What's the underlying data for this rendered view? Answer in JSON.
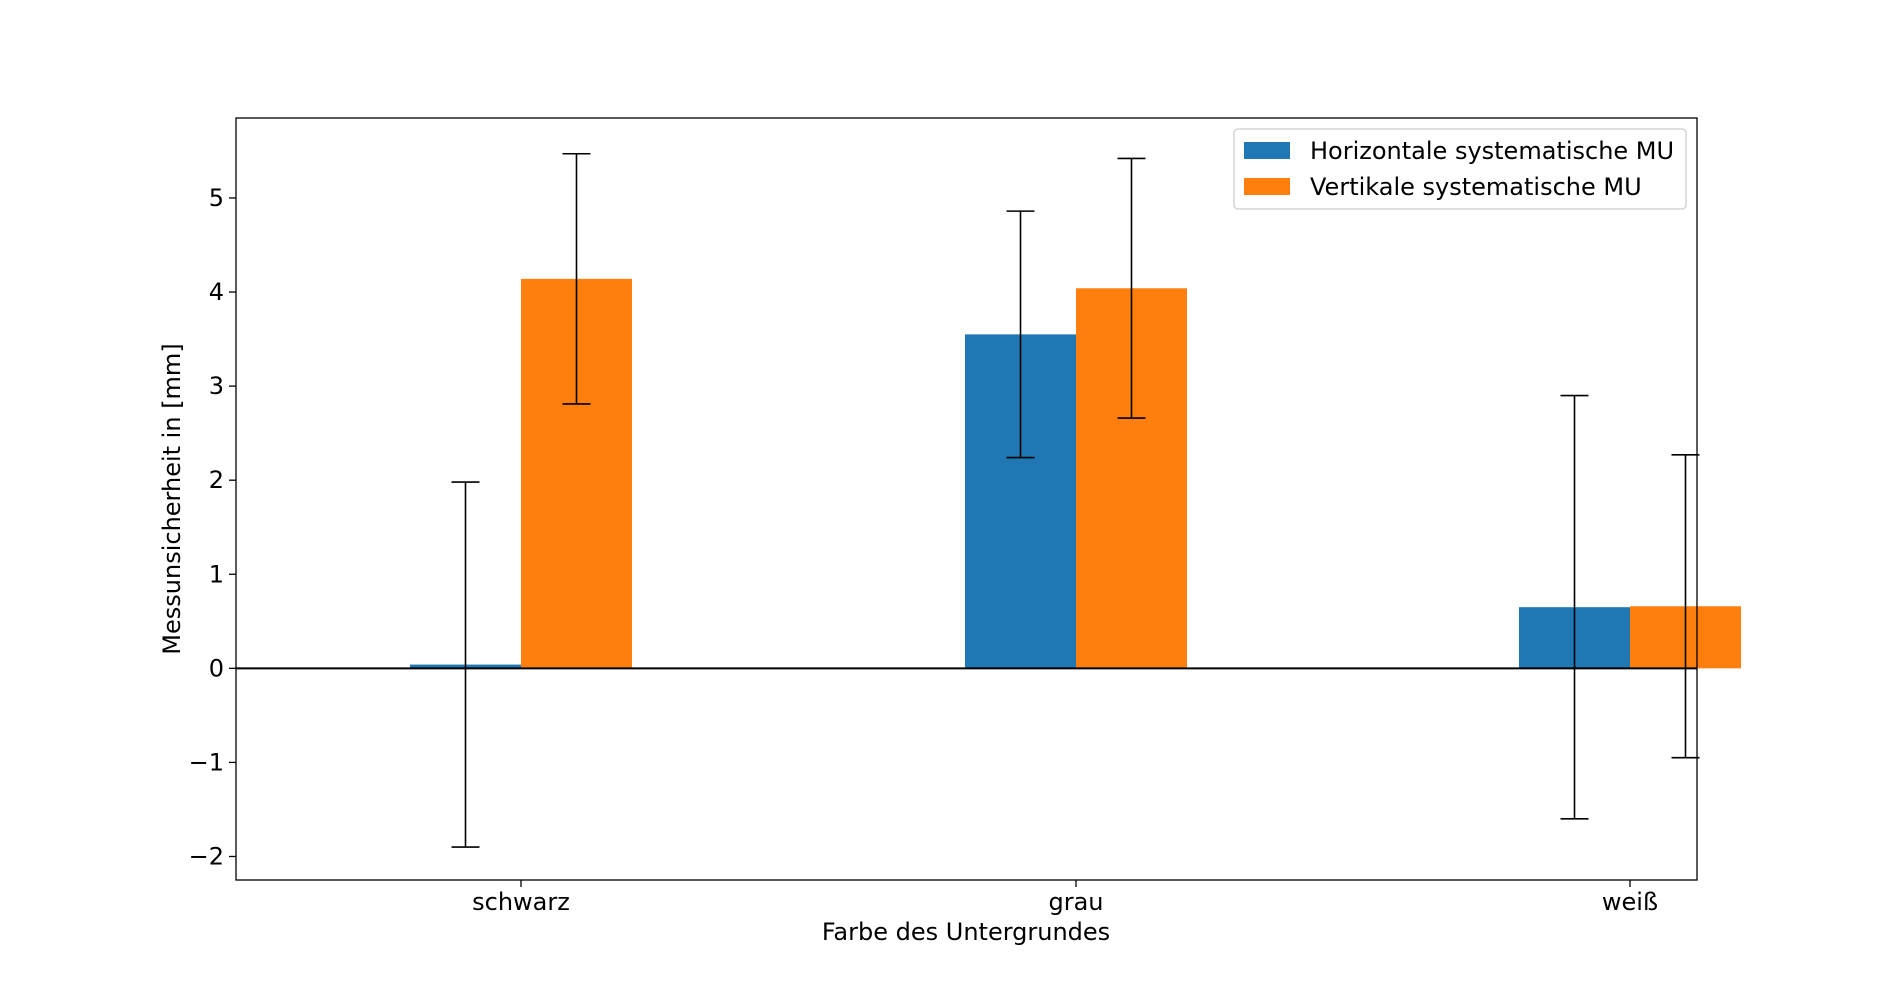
{
  "chart_data": {
    "type": "bar",
    "title": "",
    "xlabel": "Farbe des Untergrundes",
    "ylabel": "Messunsicherheit in [mm]",
    "categories": [
      "schwarz",
      "grau",
      "weiß"
    ],
    "ylim": [
      -2.25,
      5.85
    ],
    "yticks": [
      -2,
      -1,
      0,
      1,
      2,
      3,
      4,
      5
    ],
    "ytick_labels": [
      "−2",
      "−1",
      "0",
      "1",
      "2",
      "3",
      "4",
      "5"
    ],
    "grid": false,
    "zero_line": true,
    "legend_position": "top-right",
    "series": [
      {
        "name": "Horizontale systematische MU",
        "color": "#1f77b4",
        "values": [
          0.04,
          3.55,
          0.65
        ],
        "error": [
          1.94,
          1.31,
          2.25
        ]
      },
      {
        "name": "Vertikale systematische MU",
        "color": "#ff7f0e",
        "values": [
          4.14,
          4.04,
          0.66
        ],
        "error": [
          1.33,
          1.38,
          1.61
        ]
      }
    ]
  }
}
